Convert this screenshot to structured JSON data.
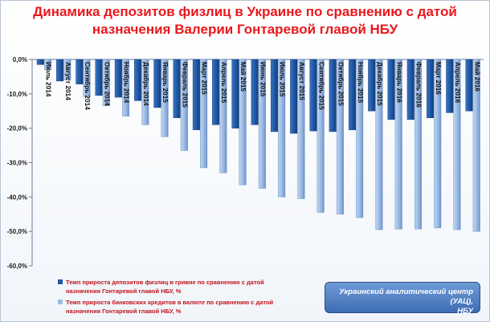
{
  "chart_data": {
    "type": "bar",
    "title": "Динамика депозитов физлиц  в Украине по сравнению с датой назначения Валерии Гонтаревой главой НБУ",
    "categories": [
      "Июль 2014",
      "Август 2014",
      "Сентябрь 2014",
      "Октябрь 2014",
      "Ноябрь 2014",
      "Декабрь 2014",
      "Январь 2015",
      "Февраль 2015",
      "Март 2015",
      "Апрель 2015",
      "Май 2015",
      "Июнь 2015",
      "Июль 2015",
      "Август 2015",
      "Сентябрь 2015",
      "Октябрь 2015",
      "Ноябрь 2015",
      "Декабрь 2015",
      "Январь 2016",
      "Февраль 2016",
      "Март 2016",
      "Апрель 2016",
      "Май 2016"
    ],
    "series": [
      {
        "name": "Темп прироста депозитов физлиц в гривне по сравнению с датой назначения Гонтаревой главой НБУ, %",
        "values": [
          -1.5,
          -6.3,
          -7.2,
          -10.5,
          -11.0,
          -12.0,
          -14.0,
          -17.0,
          -20.5,
          -19.0,
          -20.0,
          -19.0,
          -21.0,
          -21.5,
          -20.8,
          -21.0,
          -20.5,
          -15.0,
          -17.5,
          -17.5,
          -17.0,
          -15.5,
          -15.0
        ]
      },
      {
        "name": "Темп прироста банковских кредитов в валюте по сравнению с датой назначения Гонтаревой главой НБУ, %",
        "values": [
          -3.0,
          -6.0,
          -10.8,
          -13.5,
          -16.5,
          -19.0,
          -22.5,
          -26.5,
          -31.5,
          -33.0,
          -36.5,
          -37.5,
          -40.0,
          -40.5,
          -44.5,
          -45.0,
          -46.0,
          -49.5,
          -49.3,
          -49.3,
          -49.0,
          -49.5,
          -50.0
        ]
      }
    ],
    "yticks": [
      "0,0%",
      "-10,0%",
      "-20,0%",
      "-30,0%",
      "-40,0%",
      "-50,0%",
      "-60,0%"
    ],
    "ylim": [
      -60,
      0
    ],
    "grid": false,
    "legend": "bottom-left",
    "colors": {
      "series1": "#1f5aa8",
      "series2": "#9dbde6",
      "title": "#e8181c",
      "legend_text": "#c0141c"
    }
  },
  "source": {
    "line1": "Украинский аналитический центр (УАЦ),",
    "line2": "НБУ"
  }
}
